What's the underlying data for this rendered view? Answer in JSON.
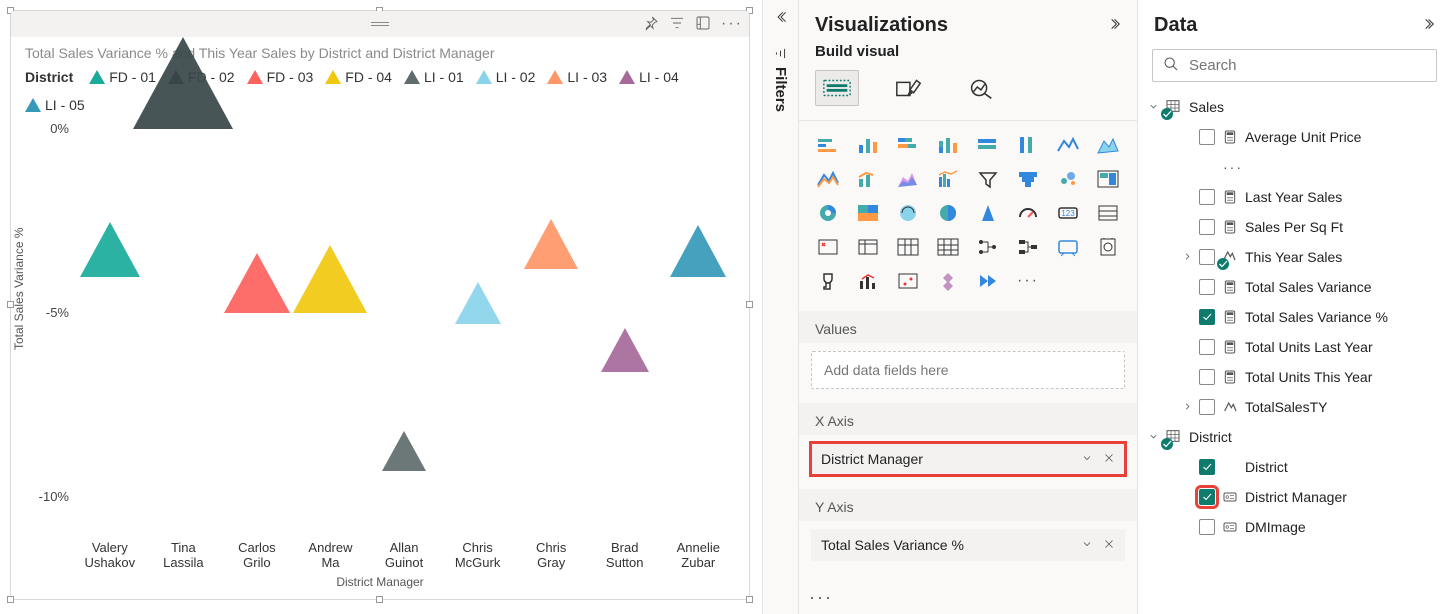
{
  "chart": {
    "title": "Total Sales Variance % and This Year Sales by District and District Manager",
    "legend_title": "District",
    "y_axis_label": "Total Sales Variance %",
    "x_axis_label": "District Manager",
    "y_min": -11,
    "y_max": 0.5,
    "y_ticks": [
      {
        "v": 0,
        "label": "0%"
      },
      {
        "v": -5,
        "label": "-5%"
      },
      {
        "v": -10,
        "label": "-10%"
      }
    ],
    "categories": [
      {
        "id": "valery",
        "label": "Valery Ushakov"
      },
      {
        "id": "tina",
        "label": "Tina Lassila"
      },
      {
        "id": "carlos",
        "label": "Carlos Grilo"
      },
      {
        "id": "andrew",
        "label": "Andrew Ma"
      },
      {
        "id": "allan",
        "label": "Allan Guinot"
      },
      {
        "id": "cmcgurk",
        "label": "Chris McGurk"
      },
      {
        "id": "cgray",
        "label": "Chris Gray"
      },
      {
        "id": "brad",
        "label": "Brad Sutton"
      },
      {
        "id": "annelie",
        "label": "Annelie Zubar"
      }
    ],
    "series": [
      {
        "name": "FD - 01",
        "color": "#1aab9b"
      },
      {
        "name": "FD - 02",
        "color": "#374649"
      },
      {
        "name": "FD - 03",
        "color": "#fd625e"
      },
      {
        "name": "FD - 04",
        "color": "#f2c80f"
      },
      {
        "name": "LI - 01",
        "color": "#5f6b6d"
      },
      {
        "name": "LI - 02",
        "color": "#8ad4eb"
      },
      {
        "name": "LI - 03",
        "color": "#fe9666"
      },
      {
        "name": "LI - 04",
        "color": "#a66999"
      },
      {
        "name": "LI - 05",
        "color": "#3599b8"
      }
    ],
    "points": [
      {
        "cat": "tina",
        "series": "FD - 02",
        "y": 0.0,
        "size": 92
      },
      {
        "cat": "valery",
        "series": "FD - 01",
        "y": -4.0,
        "size": 55
      },
      {
        "cat": "carlos",
        "series": "FD - 03",
        "y": -5.0,
        "size": 60
      },
      {
        "cat": "andrew",
        "series": "FD - 04",
        "y": -5.0,
        "size": 68
      },
      {
        "cat": "allan",
        "series": "LI - 01",
        "y": -9.3,
        "size": 40
      },
      {
        "cat": "cmcgurk",
        "series": "LI - 02",
        "y": -5.3,
        "size": 42
      },
      {
        "cat": "cgray",
        "series": "LI - 03",
        "y": -3.8,
        "size": 50
      },
      {
        "cat": "brad",
        "series": "LI - 04",
        "y": -6.6,
        "size": 44
      },
      {
        "cat": "annelie",
        "series": "LI - 05",
        "y": -4.0,
        "size": 52
      }
    ],
    "frame_bg": "#ffffff",
    "header_bg": "#f3f2f1"
  },
  "filters": {
    "label": "Filters"
  },
  "viz": {
    "title": "Visualizations",
    "subhead": "Build visual",
    "values_label": "Values",
    "values_placeholder": "Add data fields here",
    "xaxis_label": "X Axis",
    "xaxis_field": "District Manager",
    "yaxis_label": "Y Axis",
    "yaxis_field": "Total Sales Variance %"
  },
  "data": {
    "title": "Data",
    "search_placeholder": "Search",
    "tables": [
      {
        "name": "Sales",
        "expanded": true,
        "checked": true,
        "fields": [
          {
            "name": "Average Unit Price",
            "checked": false,
            "icon": "calc",
            "more": true
          },
          {
            "name": "Last Year Sales",
            "checked": false,
            "icon": "calc"
          },
          {
            "name": "Sales Per Sq Ft",
            "checked": false,
            "icon": "calc"
          },
          {
            "name": "This Year Sales",
            "checked": false,
            "icon": "hier",
            "expandable": true,
            "badge": true
          },
          {
            "name": "Total Sales Variance",
            "checked": false,
            "icon": "calc"
          },
          {
            "name": "Total Sales Variance %",
            "checked": true,
            "icon": "calc"
          },
          {
            "name": "Total Units Last Year",
            "checked": false,
            "icon": "calc"
          },
          {
            "name": "Total Units This Year",
            "checked": false,
            "icon": "calc"
          },
          {
            "name": "TotalSalesTY",
            "checked": false,
            "icon": "measure",
            "expandable": true
          }
        ]
      },
      {
        "name": "District",
        "expanded": true,
        "checked": true,
        "fields": [
          {
            "name": "District",
            "checked": true,
            "icon": "none"
          },
          {
            "name": "District Manager",
            "checked": true,
            "icon": "card",
            "highlight": true
          },
          {
            "name": "DMImage",
            "checked": false,
            "icon": "card"
          }
        ]
      }
    ]
  }
}
